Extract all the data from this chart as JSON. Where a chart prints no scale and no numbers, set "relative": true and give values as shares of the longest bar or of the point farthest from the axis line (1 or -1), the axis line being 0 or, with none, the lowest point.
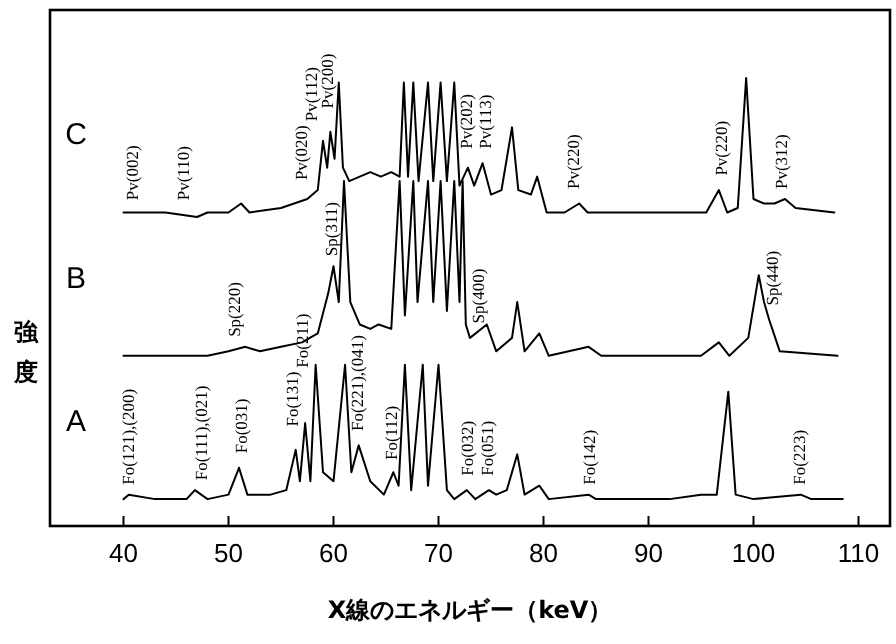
{
  "chart_data": {
    "type": "line",
    "relative": true,
    "xlabel": "X線のエネルギー（keV）",
    "ylabel": "強度",
    "xlim": [
      33,
      113
    ],
    "xticks": [
      40,
      50,
      60,
      70,
      80,
      90,
      100,
      110
    ],
    "series": [
      {
        "name": "A",
        "color": "#000000",
        "x": [
          40,
          40.5,
          43,
          46,
          46.8,
          48,
          50,
          51,
          51.8,
          54,
          55.5,
          56.4,
          56.8,
          57.3,
          57.8,
          58.3,
          59,
          60,
          61.1,
          61.7,
          62.4,
          63.5,
          64.8,
          65.7,
          66.2,
          66.8,
          67.4,
          68.5,
          69,
          70,
          70.8,
          71.5,
          72.7,
          73.5,
          74.8,
          75.5,
          76.5,
          77.5,
          78.2,
          79.6,
          80.5,
          84.3,
          85,
          92,
          95,
          96.5,
          97.6,
          98.3,
          100,
          104.5,
          105.5,
          108.5
        ],
        "values": [
          0.06,
          0.07,
          0.06,
          0.06,
          0.08,
          0.06,
          0.07,
          0.13,
          0.07,
          0.07,
          0.08,
          0.17,
          0.1,
          0.23,
          0.1,
          0.36,
          0.12,
          0.1,
          0.36,
          0.12,
          0.18,
          0.1,
          0.07,
          0.12,
          0.09,
          0.36,
          0.08,
          0.36,
          0.09,
          0.36,
          0.08,
          0.06,
          0.08,
          0.06,
          0.08,
          0.07,
          0.08,
          0.16,
          0.07,
          0.09,
          0.06,
          0.07,
          0.06,
          0.06,
          0.07,
          0.07,
          0.3,
          0.07,
          0.06,
          0.07,
          0.06,
          0.06
        ]
      },
      {
        "name": "B",
        "color": "#000000",
        "x": [
          40,
          45,
          48,
          50,
          51.6,
          53,
          55,
          57,
          58.5,
          59.5,
          60,
          60.5,
          61,
          61.6,
          62.5,
          63.5,
          64.3,
          65.5,
          66.3,
          66.8,
          67.6,
          68,
          69,
          69.5,
          70.2,
          70.8,
          71.5,
          72,
          72.3,
          72.6,
          73,
          74.6,
          75.5,
          77,
          77.5,
          78.2,
          79.6,
          80.5,
          84.3,
          85.5,
          95,
          96.7,
          97.7,
          99.5,
          100.5,
          101,
          101.5,
          102.5,
          108
        ],
        "values": [
          0.38,
          0.38,
          0.38,
          0.39,
          0.4,
          0.39,
          0.4,
          0.41,
          0.43,
          0.52,
          0.58,
          0.5,
          0.77,
          0.5,
          0.45,
          0.44,
          0.45,
          0.44,
          0.77,
          0.47,
          0.77,
          0.5,
          0.77,
          0.5,
          0.77,
          0.48,
          0.77,
          0.5,
          0.77,
          0.45,
          0.42,
          0.45,
          0.39,
          0.42,
          0.5,
          0.39,
          0.43,
          0.38,
          0.4,
          0.38,
          0.38,
          0.41,
          0.38,
          0.42,
          0.56,
          0.5,
          0.46,
          0.39,
          0.38
        ]
      },
      {
        "name": "C",
        "color": "#000000",
        "x": [
          40,
          44,
          47,
          48,
          50,
          51.2,
          52,
          55,
          57.5,
          58.5,
          59,
          59.4,
          59.7,
          60.1,
          60.5,
          60.9,
          61.5,
          62.5,
          63.5,
          64.5,
          65.5,
          66.3,
          66.7,
          67.1,
          67.6,
          68.1,
          69,
          69.5,
          70.2,
          70.8,
          71.5,
          72,
          72.8,
          73.4,
          74.2,
          75,
          76,
          77,
          77.6,
          78.8,
          79.4,
          80.3,
          82,
          83.4,
          84.2,
          86,
          90,
          95.5,
          96.7,
          97.5,
          98.5,
          99.3,
          100,
          101,
          102,
          103,
          104,
          107.7
        ],
        "values": [
          0.7,
          0.7,
          0.69,
          0.7,
          0.7,
          0.72,
          0.7,
          0.71,
          0.73,
          0.75,
          0.86,
          0.8,
          0.88,
          0.82,
          0.99,
          0.8,
          0.77,
          0.78,
          0.79,
          0.78,
          0.79,
          0.78,
          0.99,
          0.78,
          0.99,
          0.77,
          0.99,
          0.77,
          0.99,
          0.77,
          0.99,
          0.76,
          0.8,
          0.76,
          0.81,
          0.74,
          0.75,
          0.89,
          0.75,
          0.74,
          0.78,
          0.7,
          0.7,
          0.72,
          0.7,
          0.7,
          0.7,
          0.7,
          0.75,
          0.7,
          0.71,
          1.0,
          0.73,
          0.72,
          0.72,
          0.73,
          0.71,
          0.7
        ]
      }
    ],
    "annotations": [
      {
        "text": "Pv(002)",
        "x": 41,
        "y": 0.705
      },
      {
        "text": "Pv(110)",
        "x": 45.9,
        "y": 0.705
      },
      {
        "text": "Pv(020)",
        "x": 57.1,
        "y": 0.75
      },
      "Pv(112)",
      {
        "text": "Pv(200)",
        "x": 59.6,
        "y": 0.91
      },
      {
        "text": "Pv(202)",
        "x": 72.8,
        "y": 0.82
      },
      {
        "text": "Pv(113)",
        "x": 74.6,
        "y": 0.82
      },
      {
        "text": "Pv(220)",
        "x": 83,
        "y": 0.73
      },
      {
        "text": "Pv(220)",
        "x": 97.1,
        "y": 0.76
      },
      {
        "text": "Pv(312)",
        "x": 102.8,
        "y": 0.73
      },
      {
        "text": "Sp(220)",
        "x": 50.7,
        "y": 0.4
      },
      {
        "text": "Sp(311)",
        "x": 60,
        "y": 0.58
      },
      {
        "text": "Sp(400)",
        "x": 74,
        "y": 0.43
      },
      {
        "text": "Sp(440)",
        "x": 102,
        "y": 0.47
      },
      {
        "text": "Fo(121),(200)",
        "x": 40.6,
        "y": 0.07
      },
      {
        "text": "Fo(111),(021)",
        "x": 47.6,
        "y": 0.08
      },
      {
        "text": "Fo(031)",
        "x": 51.4,
        "y": 0.14
      },
      {
        "text": "Fo(131)",
        "x": 56.2,
        "y": 0.2
      },
      "Fo(211)",
      {
        "text": "Fo(221),(041)",
        "x": 62.4,
        "y": 0.19
      },
      {
        "text": "Fo(112)",
        "x": 65.7,
        "y": 0.125
      },
      {
        "text": "Fo(032)",
        "x": 72.9,
        "y": 0.09
      },
      {
        "text": "Fo(051)",
        "x": 74.8,
        "y": 0.09
      },
      {
        "text": "Fo(142)",
        "x": 84.5,
        "y": 0.07
      },
      {
        "text": "Fo(223)",
        "x": 104.5,
        "y": 0.07
      }
    ]
  }
}
